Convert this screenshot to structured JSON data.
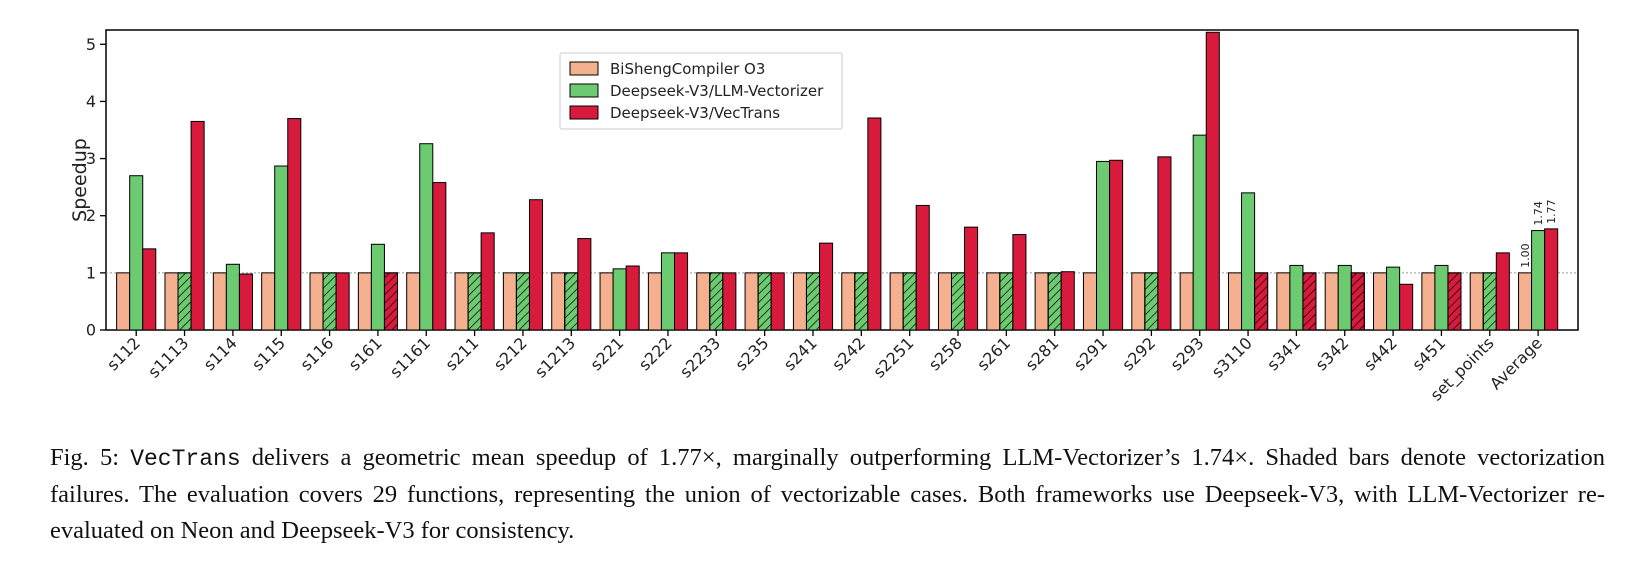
{
  "chart_data": {
    "type": "bar",
    "ylabel": "Speedup",
    "ylim": [
      0,
      5.25
    ],
    "yticks": [
      0,
      1,
      2,
      3,
      4,
      5
    ],
    "grid": false,
    "reference_line": 1,
    "legend_position": "upper-left-center",
    "categories": [
      "s112",
      "s1113",
      "s114",
      "s115",
      "s116",
      "s161",
      "s1161",
      "s211",
      "s212",
      "s1213",
      "s221",
      "s222",
      "s2233",
      "s235",
      "s241",
      "s242",
      "s2251",
      "s258",
      "s261",
      "s281",
      "s291",
      "s292",
      "s293",
      "s3110",
      "s341",
      "s342",
      "s442",
      "s451",
      "set_points",
      "Average"
    ],
    "series": [
      {
        "name": "BiShengCompiler O3",
        "color": "#f5b08f",
        "values": [
          1,
          1,
          1,
          1,
          1,
          1,
          1,
          1,
          1,
          1,
          1,
          1,
          1,
          1,
          1,
          1,
          1,
          1,
          1,
          1,
          1,
          1,
          1,
          1,
          1,
          1,
          1,
          1,
          1,
          1.0
        ],
        "hatched": [
          false,
          false,
          false,
          false,
          false,
          false,
          false,
          false,
          false,
          false,
          false,
          false,
          false,
          false,
          false,
          false,
          false,
          false,
          false,
          false,
          false,
          false,
          false,
          false,
          false,
          false,
          false,
          false,
          false,
          false
        ]
      },
      {
        "name": "Deepseek-V3/LLM-Vectorizer",
        "color": "#6ccb70",
        "values": [
          2.7,
          1,
          1.15,
          2.87,
          1,
          1.5,
          3.26,
          1,
          1,
          1,
          1.07,
          1.35,
          1,
          1,
          1,
          1,
          1,
          1,
          1,
          1,
          2.95,
          1,
          3.41,
          2.4,
          1.13,
          1.13,
          1.1,
          1.13,
          1,
          1.74
        ],
        "hatched": [
          false,
          true,
          false,
          false,
          true,
          false,
          false,
          true,
          true,
          true,
          false,
          false,
          true,
          true,
          true,
          true,
          true,
          true,
          true,
          true,
          false,
          true,
          false,
          false,
          false,
          false,
          false,
          false,
          true,
          false
        ]
      },
      {
        "name": "Deepseek-V3/VecTrans",
        "color": "#d81b3c",
        "values": [
          1.42,
          3.65,
          0.98,
          3.7,
          1,
          1,
          2.58,
          1.7,
          2.28,
          1.6,
          1.12,
          1.35,
          1,
          1,
          1.52,
          3.71,
          2.18,
          1.8,
          1.67,
          1.02,
          2.97,
          3.03,
          5.21,
          1,
          1,
          1,
          0.8,
          1,
          1.35,
          1.77
        ],
        "hatched": [
          false,
          false,
          false,
          false,
          false,
          true,
          false,
          false,
          false,
          false,
          false,
          false,
          false,
          false,
          false,
          false,
          false,
          false,
          false,
          false,
          false,
          false,
          false,
          true,
          true,
          true,
          false,
          true,
          false,
          false
        ]
      }
    ],
    "data_labels": [
      {
        "category": "Average",
        "series": 0,
        "text": "1.00"
      },
      {
        "category": "Average",
        "series": 1,
        "text": "1.74"
      },
      {
        "category": "Average",
        "series": 2,
        "text": "1.77"
      }
    ]
  },
  "caption": {
    "fig_label": "Fig. 5: ",
    "code_name": "VecTrans",
    "text": " delivers a geometric mean speedup of 1.77×, marginally outperforming LLM-Vectorizer’s 1.74×. Shaded bars denote vectorization failures. The evaluation covers 29 functions, representing the union of vectorizable cases. Both frameworks use Deepseek-V3, with LLM-Vectorizer re-evaluated on Neon and Deepseek-V3 for consistency."
  }
}
